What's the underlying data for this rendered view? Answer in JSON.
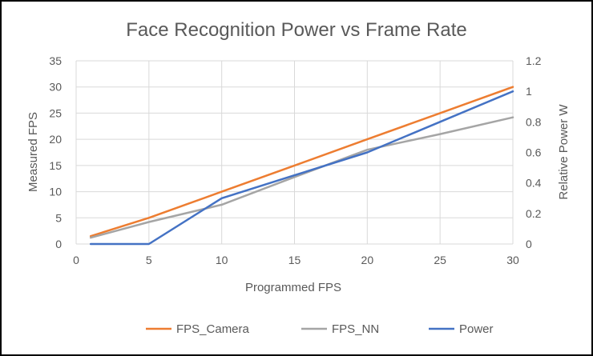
{
  "chart_data": {
    "type": "line",
    "title": "Face Recognition Power vs Frame Rate",
    "xlabel": "Programmed FPS",
    "ylabel": "Measured FPS",
    "y2label": "Relative Power W",
    "xlim": [
      0,
      30
    ],
    "ylim": [
      0,
      35
    ],
    "y2lim": [
      0,
      1.2
    ],
    "x_ticks": [
      "0",
      "5",
      "10",
      "15",
      "20",
      "25",
      "30"
    ],
    "y_ticks": [
      "0",
      "5",
      "10",
      "15",
      "20",
      "25",
      "30",
      "35"
    ],
    "y2_ticks": [
      "0",
      "0.2",
      "0.4",
      "0.6",
      "0.8",
      "1",
      "1.2"
    ],
    "grid": true,
    "legend_position": "bottom",
    "series": [
      {
        "name": "FPS_Camera",
        "axis": "left",
        "color": "#ED7D31",
        "x": [
          1,
          5,
          10,
          15,
          20,
          25,
          30
        ],
        "values": [
          1.5,
          5,
          10,
          15,
          20,
          25,
          30
        ]
      },
      {
        "name": "FPS_NN",
        "axis": "left",
        "color": "#A5A5A5",
        "x": [
          1,
          5,
          10,
          15,
          20,
          25,
          30
        ],
        "values": [
          1.2,
          4.2,
          7.5,
          12.8,
          18,
          21,
          24.2
        ]
      },
      {
        "name": "Power",
        "axis": "right",
        "color": "#4472C4",
        "x": [
          1,
          5,
          10,
          15,
          20,
          25,
          30
        ],
        "values": [
          0,
          0,
          0.3,
          0.45,
          0.6,
          0.8,
          1.0
        ]
      }
    ]
  }
}
